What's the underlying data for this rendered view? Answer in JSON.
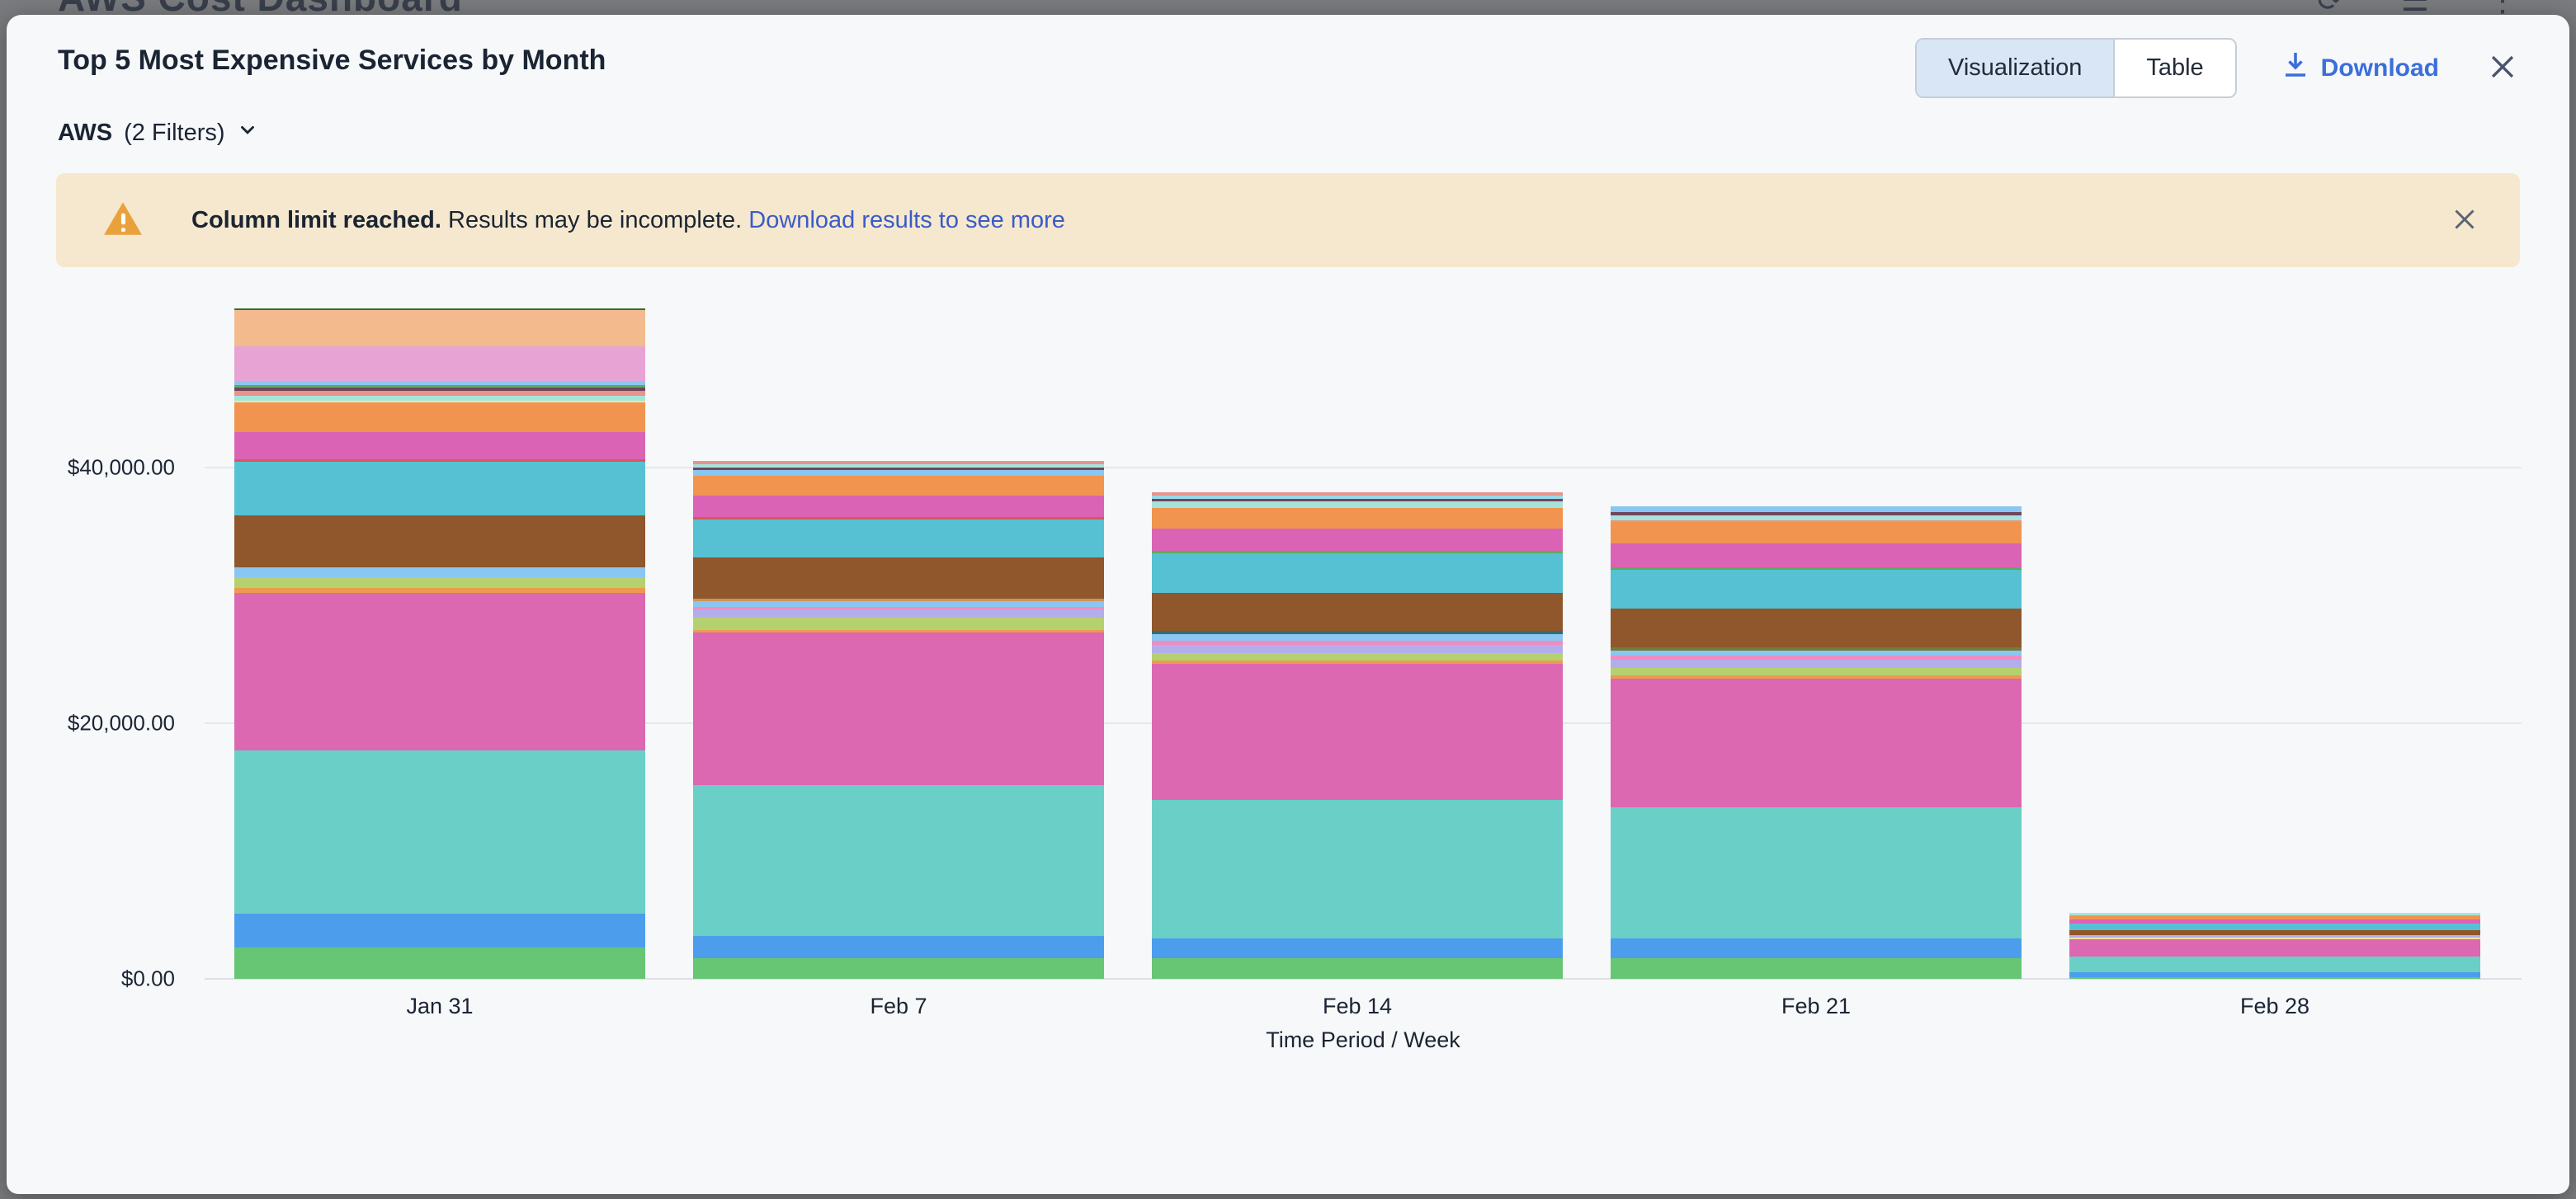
{
  "background": {
    "page_title": "AWS Cost Dashboard"
  },
  "modal": {
    "title": "Top 5 Most Expensive Services by Month",
    "view_toggle": {
      "options": [
        "Visualization",
        "Table"
      ],
      "active": "Visualization"
    },
    "download_label": "Download",
    "filter": {
      "provider": "AWS",
      "filters_label": "(2 Filters)"
    }
  },
  "banner": {
    "bold_text": "Column limit reached.",
    "text": "Results may be incomplete.",
    "link_text": "Download results to see more"
  },
  "colors": {
    "accent_blue": "#3B6FD9",
    "link_blue": "#3A5BC8",
    "banner_bg": "#F5E8CE",
    "warning_orange": "#E9A23B",
    "toggle_active_bg": "#D9E6F6",
    "text_dark": "#1A2433",
    "gridline": "#E4E7EB",
    "modal_bg": "#F7F8FA"
  },
  "chart_data": {
    "type": "bar",
    "stacked": true,
    "title": "Top 5 Most Expensive Services by Month",
    "xlabel": "Time Period / Week",
    "ylabel": "",
    "units": "USD",
    "grid": true,
    "legend": "none (segments distinguished by color only, no legend shown)",
    "categories": [
      "Jan 31",
      "Feb 7",
      "Feb 14",
      "Feb 21",
      "Feb 28"
    ],
    "y_ticks": [
      {
        "label": "$0.00",
        "value": 0
      },
      {
        "label": "$20,000.00",
        "value": 20000
      },
      {
        "label": "$40,000.00",
        "value": 40000
      }
    ],
    "ylim": [
      0,
      54000
    ],
    "bar_totals": [
      52460,
      40505,
      38055,
      36960,
      5165
    ],
    "segment_note": "segments listed bottom-to-top; values in USD estimated from gridlines",
    "bars": [
      {
        "category": "Jan 31",
        "total": 52460,
        "segments": [
          [
            "#66C673",
            2450
          ],
          [
            "#4C9EED",
            2645
          ],
          [
            "#6ACFC7",
            12775
          ],
          [
            "#DB68B1",
            12320
          ],
          [
            "#EC9B4E",
            390
          ],
          [
            "#B5D16F",
            840
          ],
          [
            "#8AC6F2",
            775
          ],
          [
            "#90562C",
            4065
          ],
          [
            "#56C1D3",
            4190
          ],
          [
            "#D95757",
            195
          ],
          [
            "#DB63B5",
            2130
          ],
          [
            "#F0944F",
            2320
          ],
          [
            "#F5E3A0",
            130
          ],
          [
            "#A6E4DB",
            390
          ],
          [
            "#E8938B",
            390
          ],
          [
            "#6F475D",
            260
          ],
          [
            "#5BAD5B",
            195
          ],
          [
            "#8AC6F2",
            320
          ],
          [
            "#E8A3D5",
            2710
          ],
          [
            "#F3BA8D",
            2840
          ],
          [
            "#2F6E3F",
            130
          ]
        ]
      },
      {
        "category": "Feb 7",
        "total": 40505,
        "segments": [
          [
            "#66C673",
            1610
          ],
          [
            "#4C9EED",
            1740
          ],
          [
            "#6ACFC7",
            11800
          ],
          [
            "#DB68B1",
            11930
          ],
          [
            "#EC9B4E",
            195
          ],
          [
            "#B5D16F",
            970
          ],
          [
            "#B3ADEC",
            645
          ],
          [
            "#F18CC1",
            195
          ],
          [
            "#8AC6F2",
            450
          ],
          [
            "#C8965A",
            195
          ],
          [
            "#90562C",
            3225
          ],
          [
            "#56C1D3",
            2965
          ],
          [
            "#D95757",
            195
          ],
          [
            "#DB63B5",
            1675
          ],
          [
            "#F0944F",
            1550
          ],
          [
            "#8AC6F2",
            450
          ],
          [
            "#6F475D",
            195
          ],
          [
            "#A6E4DB",
            260
          ],
          [
            "#E8938B",
            260
          ]
        ]
      },
      {
        "category": "Feb 14",
        "total": 38055,
        "segments": [
          [
            "#66C673",
            1610
          ],
          [
            "#4C9EED",
            1550
          ],
          [
            "#6ACFC7",
            10840
          ],
          [
            "#DB68B1",
            10640
          ],
          [
            "#EC9B4E",
            260
          ],
          [
            "#B5D16F",
            580
          ],
          [
            "#B3ADEC",
            645
          ],
          [
            "#F18CC1",
            320
          ],
          [
            "#8AC6F2",
            515
          ],
          [
            "#2F6F70",
            260
          ],
          [
            "#90562C",
            2965
          ],
          [
            "#56C1D3",
            3095
          ],
          [
            "#5BAD5B",
            195
          ],
          [
            "#DB63B5",
            1740
          ],
          [
            "#F0944F",
            1610
          ],
          [
            "#A6E4DB",
            515
          ],
          [
            "#6F475D",
            195
          ],
          [
            "#9BD9E9",
            260
          ],
          [
            "#E8938B",
            260
          ]
        ]
      },
      {
        "category": "Feb 21",
        "total": 36960,
        "segments": [
          [
            "#66C673",
            1610
          ],
          [
            "#4C9EED",
            1550
          ],
          [
            "#6ACFC7",
            10255
          ],
          [
            "#DB68B1",
            10060
          ],
          [
            "#EC9B4E",
            260
          ],
          [
            "#B5D16F",
            580
          ],
          [
            "#B3ADEC",
            645
          ],
          [
            "#F18CC1",
            320
          ],
          [
            "#8AC6F2",
            390
          ],
          [
            "#6F7E3D",
            260
          ],
          [
            "#90562C",
            3030
          ],
          [
            "#56C1D3",
            3030
          ],
          [
            "#5BAD5B",
            195
          ],
          [
            "#DB63B5",
            1870
          ],
          [
            "#F0944F",
            1675
          ],
          [
            "#E8938B",
            130
          ],
          [
            "#A6E4DB",
            390
          ],
          [
            "#6F475D",
            260
          ],
          [
            "#8AC6F2",
            450
          ]
        ]
      },
      {
        "category": "Feb 28",
        "total": 5165,
        "segments": [
          [
            "#66C673",
            130
          ],
          [
            "#4C9EED",
            390
          ],
          [
            "#6ACFC7",
            1225
          ],
          [
            "#DB68B1",
            1355
          ],
          [
            "#F5E3A0",
            130
          ],
          [
            "#B3ADEC",
            195
          ],
          [
            "#90562C",
            390
          ],
          [
            "#56C1D3",
            515
          ],
          [
            "#DB63B5",
            320
          ],
          [
            "#F0944F",
            320
          ],
          [
            "#A6E4DB",
            195
          ]
        ]
      }
    ]
  }
}
